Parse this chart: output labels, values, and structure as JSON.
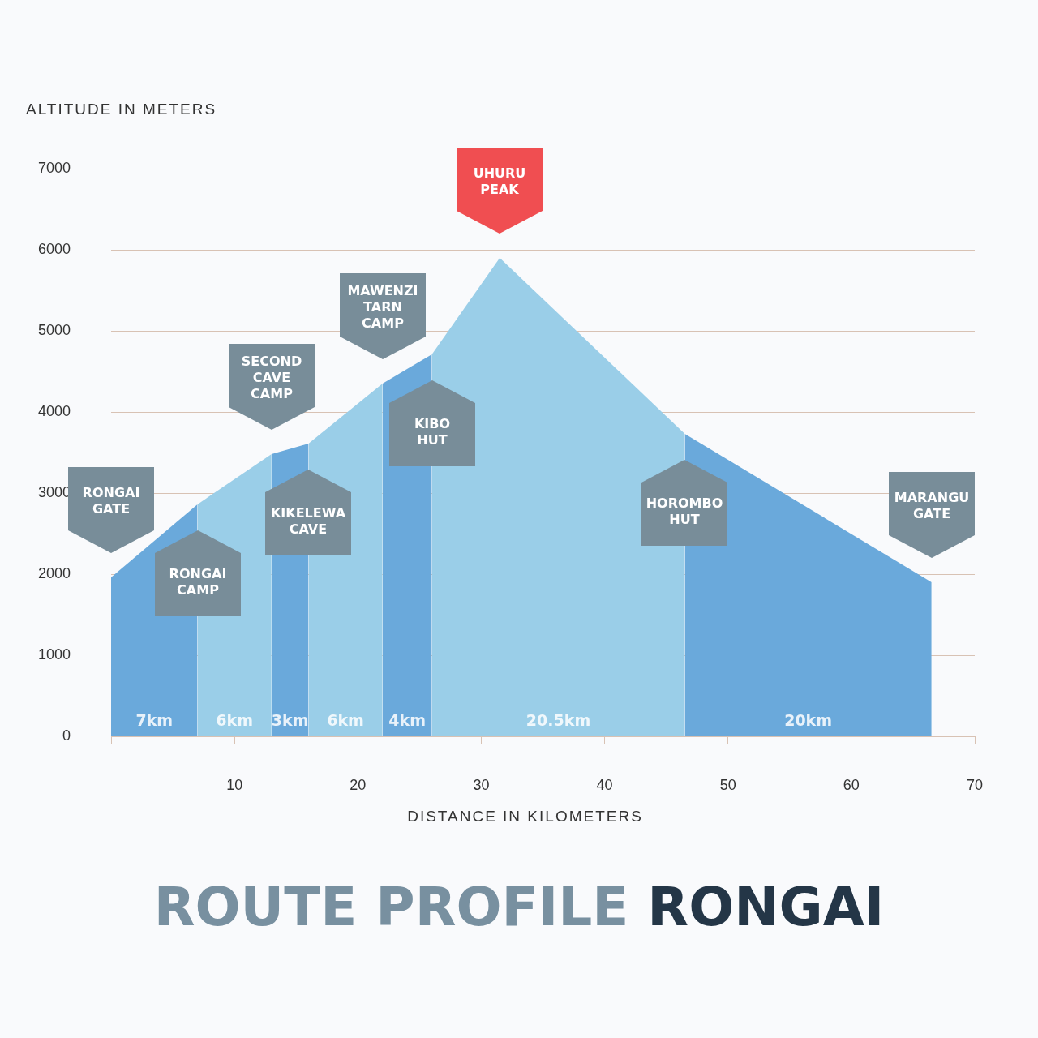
{
  "chart_data": {
    "type": "area",
    "title": "ROUTE PROFILE RONGAI",
    "xlabel": "DISTANCE IN KILOMETERS",
    "ylabel": "ALTITUDE IN METERS",
    "series": [
      {
        "name": "7km",
        "color": "#6aa9db",
        "x": [
          0,
          7
        ],
        "values": [
          1960,
          2860
        ]
      },
      {
        "name": "6km",
        "color": "#9acee8",
        "x": [
          7,
          13
        ],
        "values": [
          2860,
          3480
        ]
      },
      {
        "name": "3km",
        "color": "#6aa9db",
        "x": [
          13,
          16
        ],
        "values": [
          3480,
          3610
        ]
      },
      {
        "name": "6km",
        "color": "#9acee8",
        "x": [
          16,
          22
        ],
        "values": [
          3610,
          4350
        ]
      },
      {
        "name": "4km",
        "color": "#6aa9db",
        "x": [
          22,
          26
        ],
        "values": [
          4350,
          4710
        ]
      },
      {
        "name": "20.5km",
        "color": "#9acee8",
        "x": [
          26,
          31.5,
          46.5
        ],
        "values": [
          4710,
          5900,
          3730
        ]
      },
      {
        "name": "20km",
        "color": "#6aa9db",
        "x": [
          46.5,
          66.5
        ],
        "values": [
          3730,
          1900
        ]
      }
    ],
    "annotations": [
      "RONGAI\nGATE",
      "RONGAI\nCAMP",
      "SECOND\nCAVE\nCAMP",
      "KIKELEWA\nCAVE",
      "MAWENZI\nTARN\nCAMP",
      "KIBO\nHUT",
      "UHURU\nPEAK",
      "HOROMBO\nHUT",
      "MARANGU\nGATE"
    ],
    "xlim": [
      0,
      70
    ],
    "xticks": [
      {
        "value": 0,
        "label": null
      },
      10,
      20,
      30,
      40,
      50,
      60,
      70
    ],
    "ylim": [
      0,
      7000
    ],
    "yticks": [
      0,
      1000,
      2000,
      3000,
      4000,
      5000,
      6000,
      7000
    ],
    "grid": "y",
    "legend": false
  }
}
